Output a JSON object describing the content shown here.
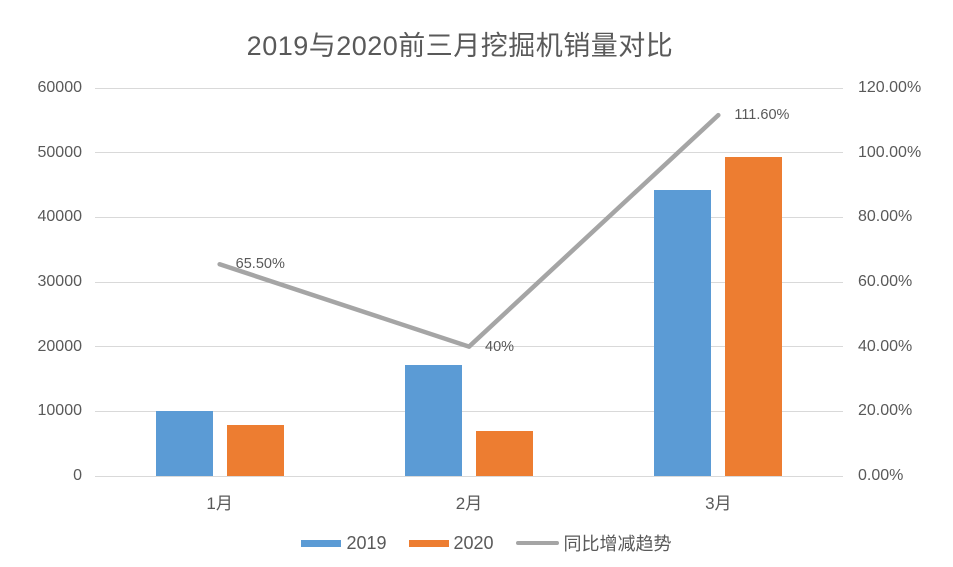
{
  "chart_data": {
    "type": "combo",
    "subtype": "grouped-bar + line (secondary axis)",
    "title": "2019与2020前三月挖掘机销量对比",
    "categories": [
      "1月",
      "2月",
      "3月"
    ],
    "bar_series": [
      {
        "name": "2019",
        "color": "#5B9BD5",
        "values": [
          10100,
          17200,
          44300
        ]
      },
      {
        "name": "2020",
        "color": "#ED7D31",
        "values": [
          7900,
          6900,
          49400
        ]
      }
    ],
    "line_series": {
      "name": "同比增减趋势",
      "color": "#A5A5A5",
      "values": [
        65.5,
        40,
        111.6
      ],
      "point_labels": [
        "65.50%",
        "40%",
        "111.60%"
      ]
    },
    "left_axis": {
      "min": 0,
      "max": 60000,
      "step": 10000,
      "ticks": [
        "0",
        "10000",
        "20000",
        "30000",
        "40000",
        "50000",
        "60000"
      ]
    },
    "right_axis": {
      "min": 0,
      "max": 120,
      "step": 20,
      "ticks": [
        "0.00%",
        "20.00%",
        "40.00%",
        "60.00%",
        "80.00%",
        "100.00%",
        "120.00%"
      ]
    },
    "legend": {
      "position": "bottom",
      "entries": [
        "2019",
        "2020",
        "同比增减趋势"
      ]
    },
    "grid": "horizontal gridlines on",
    "colors": {
      "grid": "#D9D9D9",
      "text": "#595959",
      "background": "#FFFFFF"
    }
  }
}
